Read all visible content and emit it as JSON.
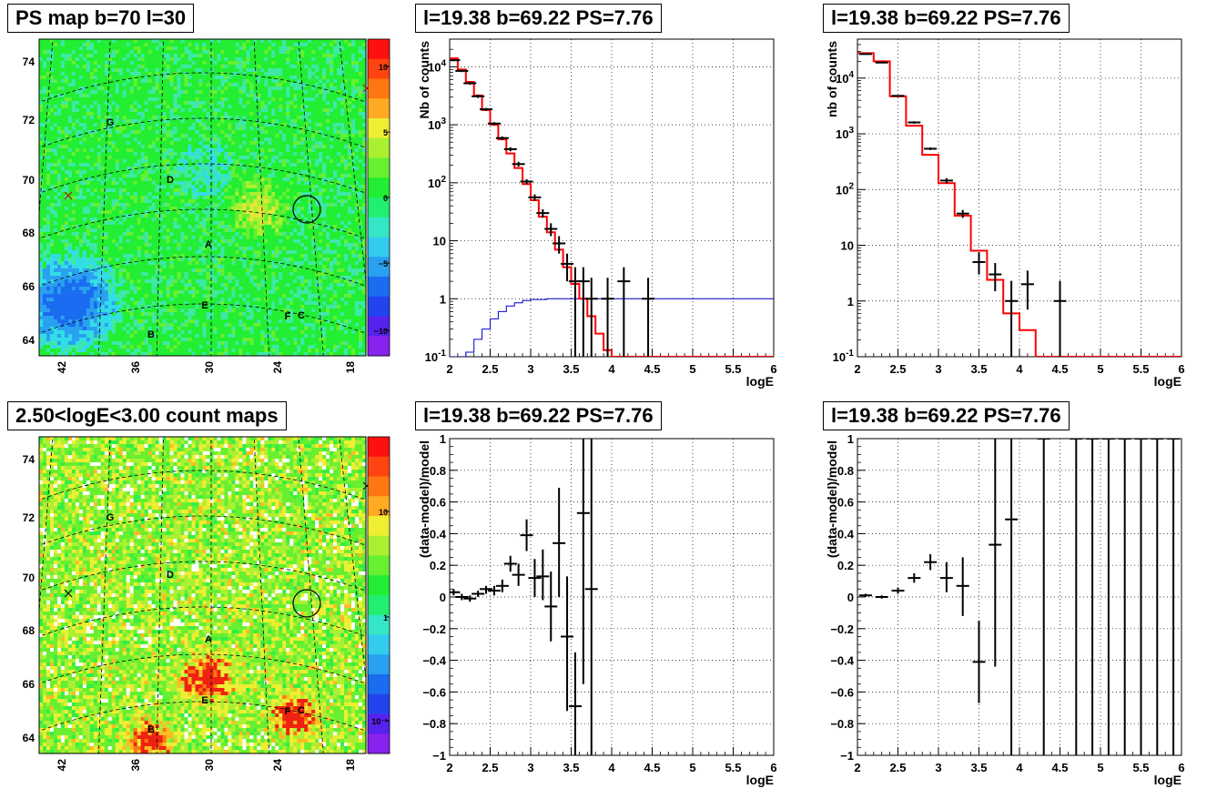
{
  "colors": {
    "model": "#ff0000",
    "component": "#0000cc",
    "data": "#000000"
  },
  "maps": [
    {
      "title": "PS map b=70 l=30",
      "kind": "ps",
      "yticks": [
        "74",
        "72",
        "70",
        "68",
        "66",
        "64"
      ],
      "xticks": [
        "42",
        "36",
        "30",
        "24",
        "18"
      ],
      "scale_labels": [
        "10",
        "5",
        "0",
        "-5",
        "-10"
      ],
      "letters": [
        "A",
        "B",
        "C",
        "D",
        "E",
        "F",
        "G"
      ]
    },
    {
      "title": "2.50<logE<3.00 count maps",
      "kind": "counts",
      "yticks": [
        "74",
        "72",
        "70",
        "68",
        "66",
        "64"
      ],
      "xticks": [
        "42",
        "36",
        "30",
        "24",
        "18"
      ],
      "scale_labels": [
        "10",
        "1",
        "10⁻¹"
      ],
      "letters": [
        "A",
        "B",
        "C",
        "D",
        "E",
        "F",
        "G"
      ]
    }
  ],
  "chart_data": [
    {
      "type": "line",
      "title": "l=19.38 b=69.22 PS=7.76",
      "xlabel": "logE",
      "ylabel": "Nb of counts",
      "xlim": [
        2,
        6
      ],
      "ylim": [
        0.1,
        30000
      ],
      "yscale": "log",
      "grid": true,
      "xticks": [
        "2",
        "2.5",
        "3",
        "3.5",
        "4",
        "4.5",
        "5",
        "5.5",
        "6"
      ],
      "yticks": [
        "10^4",
        "10^3",
        "10^2",
        "10",
        "1",
        "10^-1"
      ],
      "model_steps": [
        {
          "x": 2.0,
          "y": 14000
        },
        {
          "x": 2.1,
          "y": 9000
        },
        {
          "x": 2.2,
          "y": 5500
        },
        {
          "x": 2.3,
          "y": 3200
        },
        {
          "x": 2.4,
          "y": 1800
        },
        {
          "x": 2.5,
          "y": 1000
        },
        {
          "x": 2.6,
          "y": 560
        },
        {
          "x": 2.7,
          "y": 320
        },
        {
          "x": 2.8,
          "y": 180
        },
        {
          "x": 2.9,
          "y": 95
        },
        {
          "x": 3.0,
          "y": 50
        },
        {
          "x": 3.1,
          "y": 26
        },
        {
          "x": 3.2,
          "y": 14
        },
        {
          "x": 3.3,
          "y": 7
        },
        {
          "x": 3.4,
          "y": 3.5
        },
        {
          "x": 3.5,
          "y": 1.8
        },
        {
          "x": 3.6,
          "y": 1.0
        },
        {
          "x": 3.7,
          "y": 0.5
        },
        {
          "x": 3.8,
          "y": 0.25
        },
        {
          "x": 3.9,
          "y": 0.13
        },
        {
          "x": 4.0,
          "y": 0.1
        }
      ],
      "component_steps": [
        {
          "x": 2.0,
          "y": 0.1
        },
        {
          "x": 2.2,
          "y": 0.12
        },
        {
          "x": 2.3,
          "y": 0.2
        },
        {
          "x": 2.4,
          "y": 0.3
        },
        {
          "x": 2.5,
          "y": 0.45
        },
        {
          "x": 2.6,
          "y": 0.6
        },
        {
          "x": 2.7,
          "y": 0.75
        },
        {
          "x": 2.8,
          "y": 0.85
        },
        {
          "x": 2.9,
          "y": 0.93
        },
        {
          "x": 3.0,
          "y": 0.97
        },
        {
          "x": 3.2,
          "y": 1.0
        },
        {
          "x": 6.0,
          "y": 1.0
        }
      ],
      "points": [
        {
          "x": 2.05,
          "y": 13000,
          "lo": 12500,
          "hi": 13500
        },
        {
          "x": 2.15,
          "y": 8500,
          "lo": 8100,
          "hi": 8900
        },
        {
          "x": 2.25,
          "y": 5200,
          "lo": 4900,
          "hi": 5500
        },
        {
          "x": 2.35,
          "y": 3100,
          "lo": 2900,
          "hi": 3300
        },
        {
          "x": 2.45,
          "y": 1850,
          "lo": 1750,
          "hi": 1950
        },
        {
          "x": 2.55,
          "y": 1050,
          "lo": 990,
          "hi": 1110
        },
        {
          "x": 2.65,
          "y": 590,
          "lo": 550,
          "hi": 630
        },
        {
          "x": 2.75,
          "y": 380,
          "lo": 350,
          "hi": 410
        },
        {
          "x": 2.85,
          "y": 210,
          "lo": 190,
          "hi": 230
        },
        {
          "x": 2.95,
          "y": 105,
          "lo": 95,
          "hi": 115
        },
        {
          "x": 3.05,
          "y": 56,
          "lo": 49,
          "hi": 63
        },
        {
          "x": 3.15,
          "y": 30,
          "lo": 25,
          "hi": 35
        },
        {
          "x": 3.25,
          "y": 16,
          "lo": 12,
          "hi": 20
        },
        {
          "x": 3.35,
          "y": 9,
          "lo": 6,
          "hi": 12
        },
        {
          "x": 3.45,
          "y": 4,
          "lo": 2,
          "hi": 6
        },
        {
          "x": 3.55,
          "y": 2,
          "lo": 0.1,
          "hi": 3.5
        },
        {
          "x": 3.65,
          "y": 2,
          "lo": 0.1,
          "hi": 3.5
        },
        {
          "x": 3.75,
          "y": 1,
          "lo": 0.1,
          "hi": 2.3
        },
        {
          "x": 3.95,
          "y": 1,
          "lo": 0.1,
          "hi": 2.3
        },
        {
          "x": 4.15,
          "y": 2,
          "lo": 0.1,
          "hi": 3.5
        },
        {
          "x": 4.45,
          "y": 1,
          "lo": 0.1,
          "hi": 2.3
        }
      ]
    },
    {
      "type": "line",
      "title": "l=19.38 b=69.22 PS=7.76",
      "xlabel": "logE",
      "ylabel": "nb of counts",
      "xlim": [
        2,
        6
      ],
      "ylim": [
        0.1,
        50000
      ],
      "yscale": "log",
      "grid": true,
      "xticks": [
        "2",
        "2.5",
        "3",
        "3.5",
        "4",
        "4.5",
        "5",
        "5.5",
        "6"
      ],
      "yticks": [
        "10^4",
        "10^3",
        "10^2",
        "10",
        "1",
        "10^-1"
      ],
      "model_steps": [
        {
          "x": 2.0,
          "y": 28000
        },
        {
          "x": 2.2,
          "y": 20000
        },
        {
          "x": 2.4,
          "y": 4700
        },
        {
          "x": 2.6,
          "y": 1400
        },
        {
          "x": 2.8,
          "y": 420
        },
        {
          "x": 3.0,
          "y": 130
        },
        {
          "x": 3.2,
          "y": 34
        },
        {
          "x": 3.4,
          "y": 8
        },
        {
          "x": 3.6,
          "y": 2.4
        },
        {
          "x": 3.8,
          "y": 0.6
        },
        {
          "x": 4.0,
          "y": 0.3
        },
        {
          "x": 4.2,
          "y": 0.1
        }
      ],
      "points": [
        {
          "x": 2.1,
          "y": 27000,
          "lo": 26500,
          "hi": 27500
        },
        {
          "x": 2.3,
          "y": 19000,
          "lo": 18500,
          "hi": 19500
        },
        {
          "x": 2.5,
          "y": 4800,
          "lo": 4650,
          "hi": 4950
        },
        {
          "x": 2.7,
          "y": 1600,
          "lo": 1520,
          "hi": 1680
        },
        {
          "x": 2.9,
          "y": 540,
          "lo": 510,
          "hi": 570
        },
        {
          "x": 3.1,
          "y": 145,
          "lo": 130,
          "hi": 160
        },
        {
          "x": 3.3,
          "y": 37,
          "lo": 31,
          "hi": 43
        },
        {
          "x": 3.5,
          "y": 5,
          "lo": 3,
          "hi": 7.5
        },
        {
          "x": 3.7,
          "y": 3,
          "lo": 1.5,
          "hi": 4.8
        },
        {
          "x": 3.9,
          "y": 1,
          "lo": 0.1,
          "hi": 2.3
        },
        {
          "x": 4.1,
          "y": 2,
          "lo": 0.7,
          "hi": 3.5
        },
        {
          "x": 4.5,
          "y": 1,
          "lo": 0.1,
          "hi": 2.3
        }
      ]
    },
    {
      "type": "scatter",
      "title": "l=19.38 b=69.22 PS=7.76",
      "xlabel": "logE",
      "ylabel": "(data-model)/model",
      "xlim": [
        2,
        6
      ],
      "ylim": [
        -1,
        1
      ],
      "grid": true,
      "xticks": [
        "2",
        "2.5",
        "3",
        "3.5",
        "4",
        "4.5",
        "5",
        "5.5",
        "6"
      ],
      "yticks": [
        "1",
        "0.8",
        "0.6",
        "0.4",
        "0.2",
        "0",
        "-0.2",
        "-0.4",
        "-0.6",
        "-0.8",
        "-1"
      ],
      "points": [
        {
          "x": 2.05,
          "y": 0.03,
          "lo": 0.01,
          "hi": 0.05
        },
        {
          "x": 2.15,
          "y": 0.0,
          "lo": -0.02,
          "hi": 0.02
        },
        {
          "x": 2.25,
          "y": -0.01,
          "lo": -0.03,
          "hi": 0.01
        },
        {
          "x": 2.35,
          "y": 0.02,
          "lo": 0.0,
          "hi": 0.04
        },
        {
          "x": 2.45,
          "y": 0.05,
          "lo": 0.02,
          "hi": 0.07
        },
        {
          "x": 2.55,
          "y": 0.04,
          "lo": 0.01,
          "hi": 0.07
        },
        {
          "x": 2.65,
          "y": 0.07,
          "lo": 0.03,
          "hi": 0.11
        },
        {
          "x": 2.75,
          "y": 0.21,
          "lo": 0.16,
          "hi": 0.26
        },
        {
          "x": 2.85,
          "y": 0.14,
          "lo": 0.07,
          "hi": 0.21
        },
        {
          "x": 2.95,
          "y": 0.39,
          "lo": 0.29,
          "hi": 0.49
        },
        {
          "x": 3.05,
          "y": 0.12,
          "lo": 0.0,
          "hi": 0.24
        },
        {
          "x": 3.15,
          "y": 0.13,
          "lo": -0.02,
          "hi": 0.3
        },
        {
          "x": 3.25,
          "y": -0.06,
          "lo": -0.28,
          "hi": 0.16
        },
        {
          "x": 3.35,
          "y": 0.34,
          "lo": 0.0,
          "hi": 0.69
        },
        {
          "x": 3.45,
          "y": -0.25,
          "lo": -0.72,
          "hi": 0.13
        },
        {
          "x": 3.55,
          "y": -0.69,
          "lo": -1.0,
          "hi": -0.35
        },
        {
          "x": 3.65,
          "y": 0.53,
          "lo": -0.55,
          "hi": 1.0
        },
        {
          "x": 3.75,
          "y": 0.05,
          "lo": -1.0,
          "hi": 1.0
        }
      ]
    },
    {
      "type": "scatter",
      "title": "l=19.38 b=69.22 PS=7.76",
      "xlabel": "logE",
      "ylabel": "(data-model)/model",
      "xlim": [
        2,
        6
      ],
      "ylim": [
        -1,
        1
      ],
      "grid": true,
      "xticks": [
        "2",
        "2.5",
        "3",
        "3.5",
        "4",
        "4.5",
        "5",
        "5.5",
        "6"
      ],
      "yticks": [
        "1",
        "0.8",
        "0.6",
        "0.4",
        "0.2",
        "0",
        "-0.2",
        "-0.4",
        "-0.6",
        "-0.8",
        "-1"
      ],
      "points": [
        {
          "x": 2.1,
          "y": 0.01,
          "lo": 0.0,
          "hi": 0.02
        },
        {
          "x": 2.3,
          "y": 0.0,
          "lo": -0.01,
          "hi": 0.01
        },
        {
          "x": 2.5,
          "y": 0.04,
          "lo": 0.02,
          "hi": 0.06
        },
        {
          "x": 2.7,
          "y": 0.12,
          "lo": 0.09,
          "hi": 0.15
        },
        {
          "x": 2.9,
          "y": 0.22,
          "lo": 0.17,
          "hi": 0.27
        },
        {
          "x": 3.1,
          "y": 0.12,
          "lo": 0.03,
          "hi": 0.22
        },
        {
          "x": 3.3,
          "y": 0.07,
          "lo": -0.12,
          "hi": 0.25
        },
        {
          "x": 3.5,
          "y": -0.41,
          "lo": -0.67,
          "hi": -0.15
        },
        {
          "x": 3.7,
          "y": 0.33,
          "lo": -0.44,
          "hi": 1.0
        },
        {
          "x": 3.9,
          "y": 0.49,
          "lo": -1.0,
          "hi": 1.0
        },
        {
          "x": 4.3,
          "y": 1.0,
          "lo": -1.0,
          "hi": 1.0
        },
        {
          "x": 4.7,
          "y": 1.0,
          "lo": -1.0,
          "hi": 1.0
        },
        {
          "x": 4.9,
          "y": 1.0,
          "lo": -1.0,
          "hi": 1.0
        },
        {
          "x": 5.1,
          "y": 1.0,
          "lo": -1.0,
          "hi": 1.0
        },
        {
          "x": 5.3,
          "y": 1.0,
          "lo": -1.0,
          "hi": 1.0
        },
        {
          "x": 5.5,
          "y": 1.0,
          "lo": -1.0,
          "hi": 1.0
        },
        {
          "x": 5.7,
          "y": 1.0,
          "lo": -1.0,
          "hi": 1.0
        },
        {
          "x": 5.9,
          "y": 1.0,
          "lo": -1.0,
          "hi": 1.0
        }
      ]
    }
  ]
}
